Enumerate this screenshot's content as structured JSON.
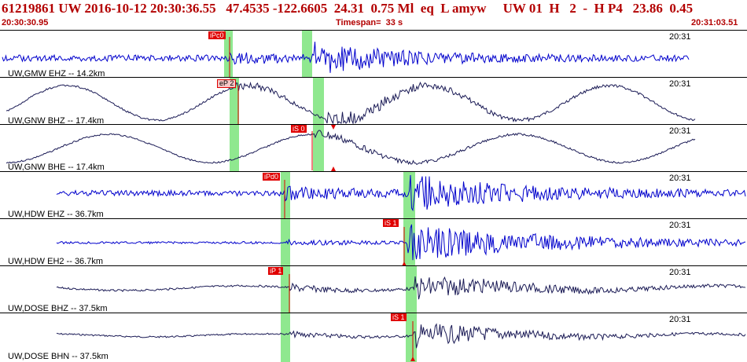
{
  "header": {
    "event_line": "61219861 UW 2016-10-12 20:30:36.55   47.4535 -122.6605  24.31  0.75 Ml  eq  L amyw     UW 01  H   2  -  H P4   23.86  0.45",
    "start_time": "20:30:30.95",
    "timespan": "Timespan=  33 s",
    "end_time": "20:31:03.51"
  },
  "colors": {
    "header_text": "#b30000",
    "trace_blue": "#0000cc",
    "trace_dark": "#1a1a55",
    "pick_red": "#e00000",
    "window_green": "#8fe88f"
  },
  "panels": [
    {
      "label": "UW,GMW EHZ -- 14.2km",
      "time": "20:31",
      "pick": "iPc0"
    },
    {
      "label": "UW,GNW BHZ -- 17.4km",
      "time": "20:31",
      "pick": "eP 2"
    },
    {
      "label": "UW,GNW BHE -- 17.4km",
      "time": "20:31",
      "pick": "iS 0"
    },
    {
      "label": "UW,HDW EHZ -- 36.7km",
      "time": "20:31",
      "pick": "iPd0"
    },
    {
      "label": "UW,HDW EH2 -- 36.7km",
      "time": "20:31",
      "pick": "iS 1"
    },
    {
      "label": "UW,DOSE BHZ -- 37.5km",
      "time": "20:31",
      "pick": "iP 1"
    },
    {
      "label": "UW,DOSE BHN -- 37.5km",
      "time": "20:31",
      "pick": "iS 1"
    }
  ]
}
